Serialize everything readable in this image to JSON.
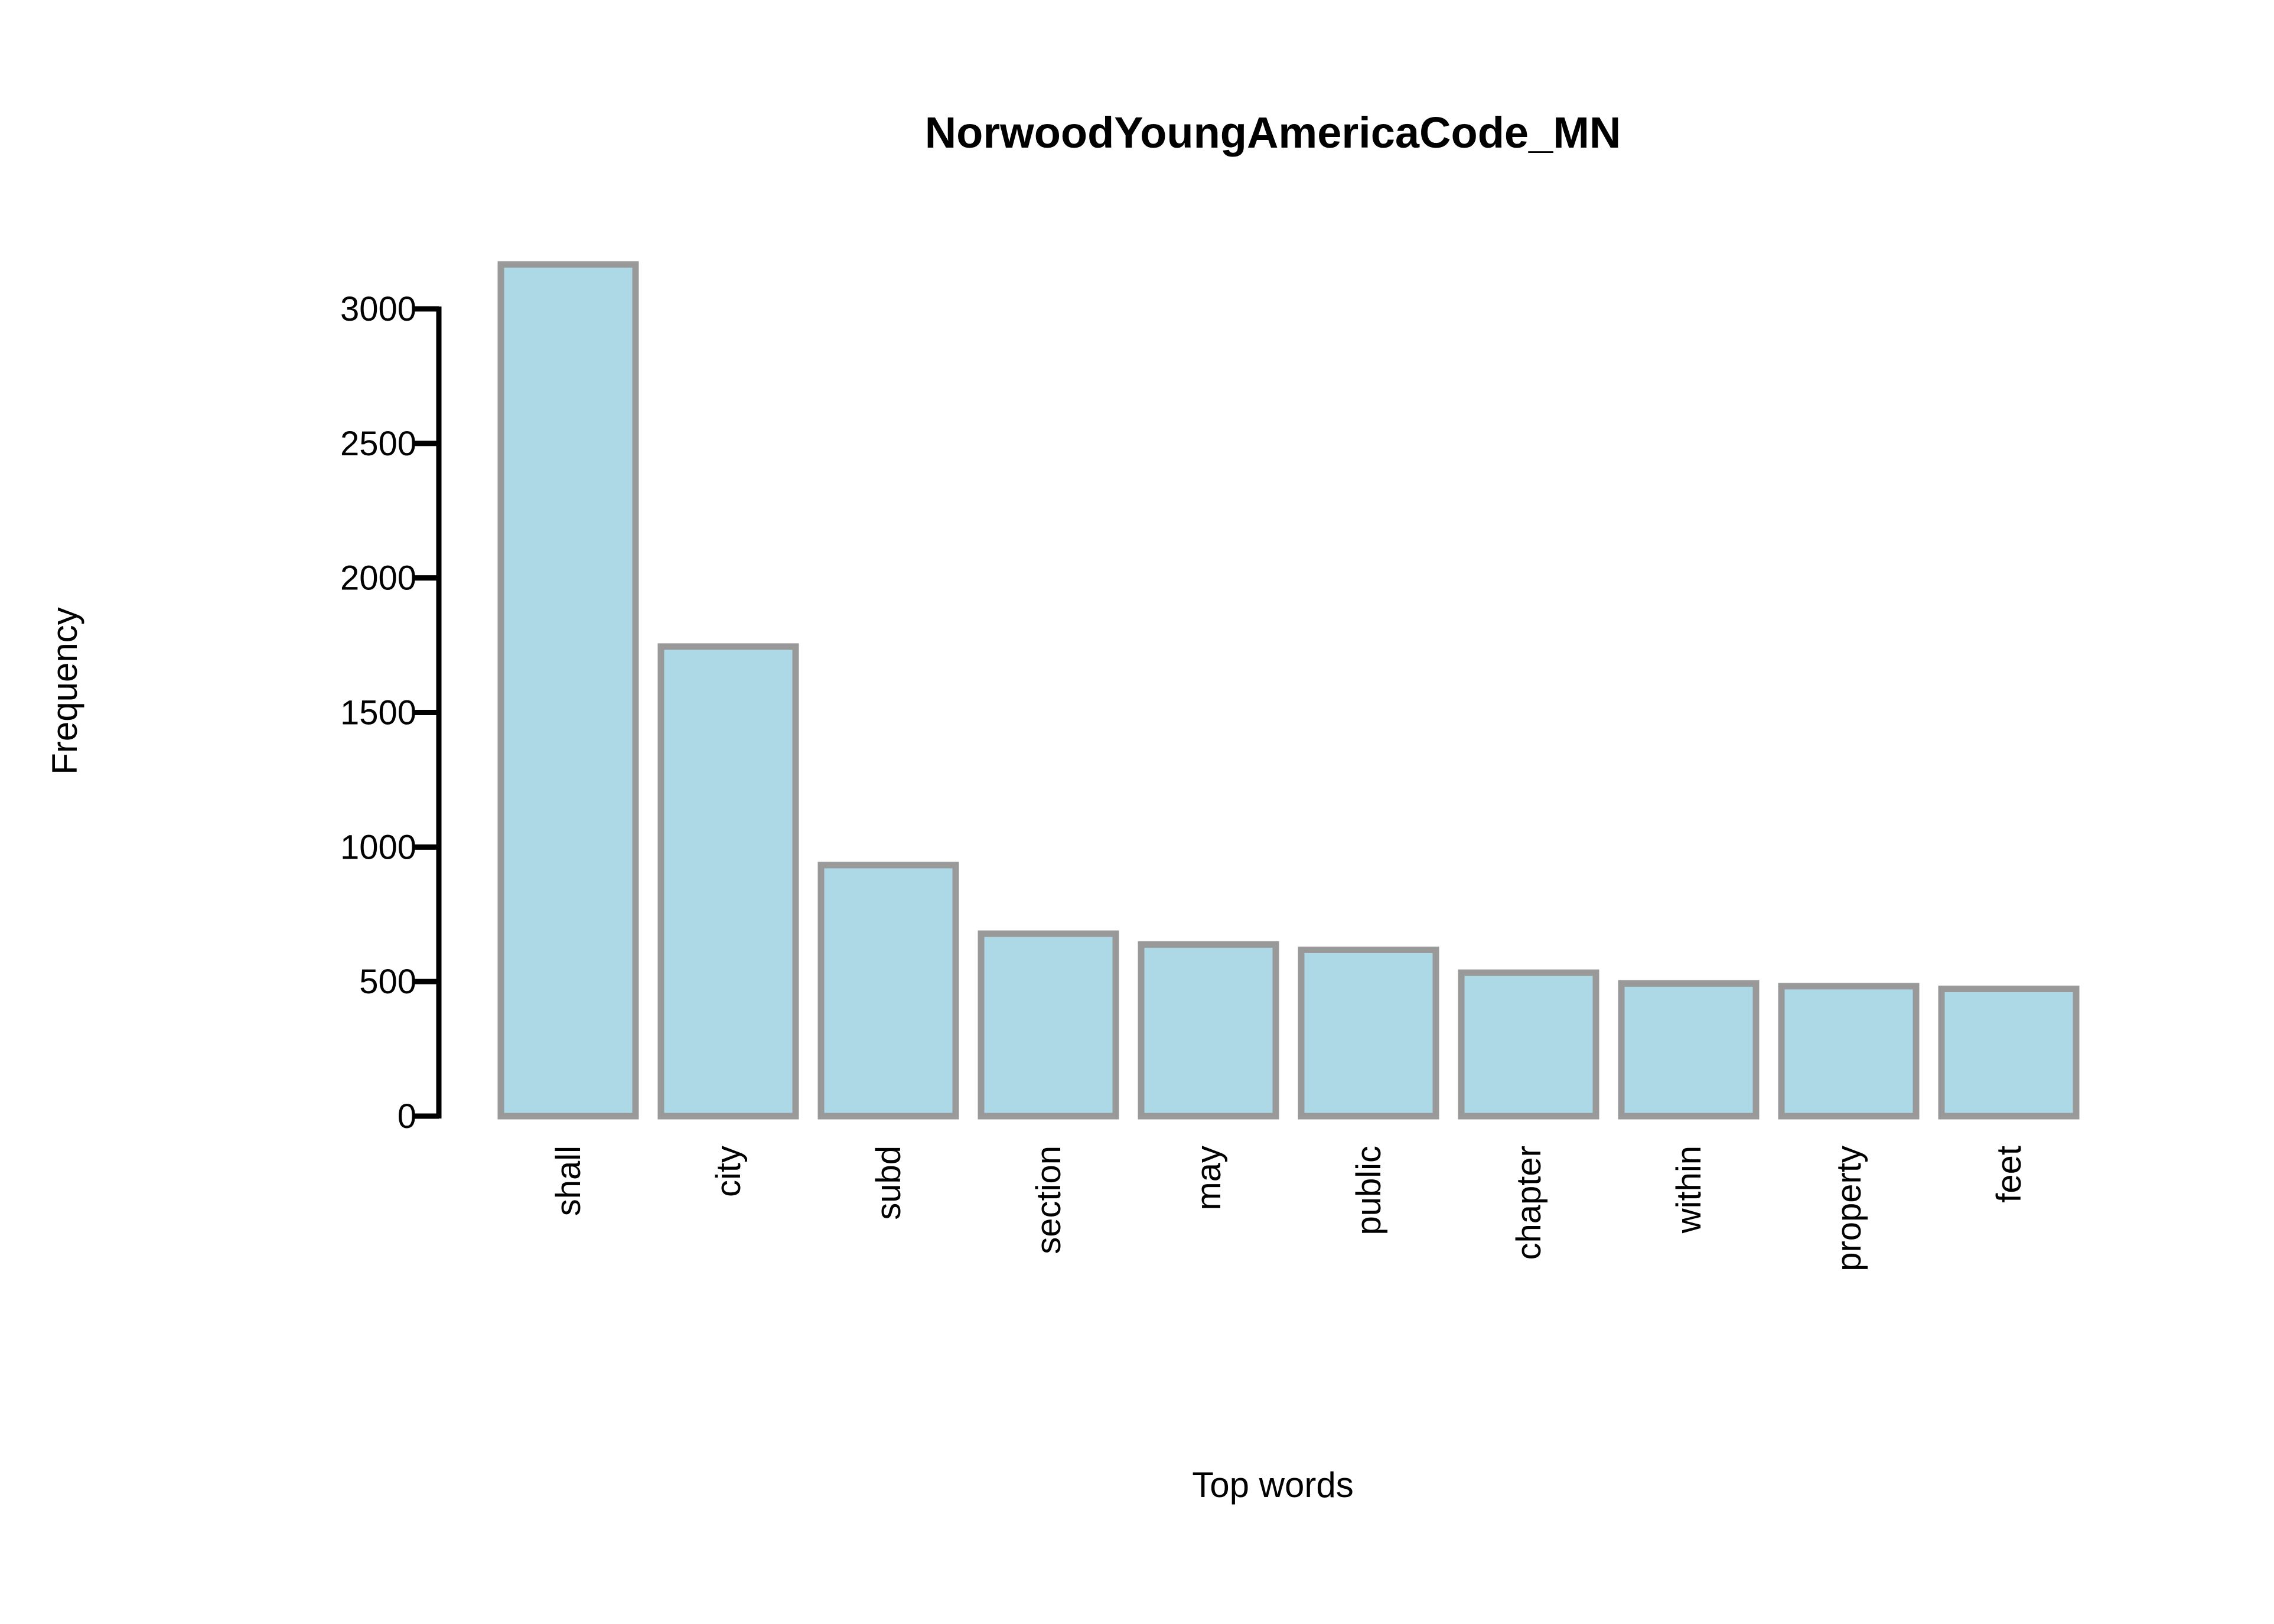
{
  "chart_data": {
    "type": "bar",
    "title": "NorwoodYoungAmericaCode_MN",
    "xlabel": "Top words",
    "ylabel": "Frequency",
    "categories": [
      "shall",
      "city",
      "subd",
      "section",
      "may",
      "public",
      "chapter",
      "within",
      "property",
      "feet"
    ],
    "values": [
      3165,
      1745,
      933,
      678,
      638,
      618,
      533,
      493,
      483,
      473
    ],
    "ylim": [
      0,
      3000
    ],
    "yticks": [
      "0",
      "500",
      "1000",
      "1500",
      "2000",
      "2500",
      "3000"
    ],
    "grid": false,
    "legend": "none",
    "colors": {
      "bar_fill": "#add8e6",
      "bar_stroke": "#999999",
      "axis": "#000000"
    }
  }
}
